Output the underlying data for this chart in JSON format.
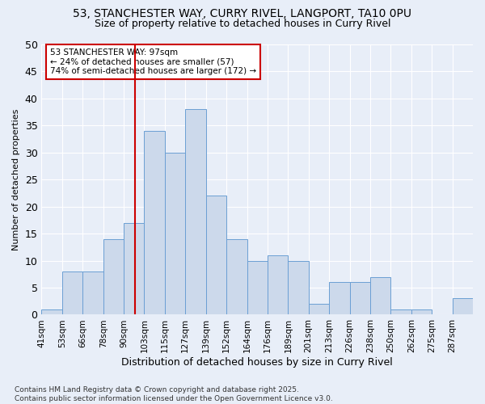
{
  "title_line1": "53, STANCHESTER WAY, CURRY RIVEL, LANGPORT, TA10 0PU",
  "title_line2": "Size of property relative to detached houses in Curry Rivel",
  "xlabel": "Distribution of detached houses by size in Curry Rivel",
  "ylabel": "Number of detached properties",
  "footnote_line1": "Contains HM Land Registry data © Crown copyright and database right 2025.",
  "footnote_line2": "Contains public sector information licensed under the Open Government Licence v3.0.",
  "bar_labels": [
    "41sqm",
    "53sqm",
    "66sqm",
    "78sqm",
    "90sqm",
    "103sqm",
    "115sqm",
    "127sqm",
    "139sqm",
    "152sqm",
    "164sqm",
    "176sqm",
    "189sqm",
    "201sqm",
    "213sqm",
    "226sqm",
    "238sqm",
    "250sqm",
    "262sqm",
    "275sqm",
    "287sqm"
  ],
  "bar_values": [
    1,
    8,
    8,
    14,
    17,
    34,
    30,
    38,
    22,
    14,
    10,
    11,
    10,
    2,
    6,
    6,
    7,
    1,
    1,
    0,
    3
  ],
  "bar_color": "#ccd9eb",
  "bar_edge_color": "#6b9fd4",
  "annotation_title": "53 STANCHESTER WAY: 97sqm",
  "annotation_line1": "← 24% of detached houses are smaller (57)",
  "annotation_line2": "74% of semi-detached houses are larger (172) →",
  "vline_index": 5,
  "ylim": [
    0,
    50
  ],
  "yticks": [
    0,
    5,
    10,
    15,
    20,
    25,
    30,
    35,
    40,
    45,
    50
  ],
  "bg_color": "#e8eef8",
  "grid_color": "#ffffff",
  "vline_color": "#cc0000",
  "annotation_box_color": "#ffffff",
  "annotation_box_edge": "#cc0000"
}
